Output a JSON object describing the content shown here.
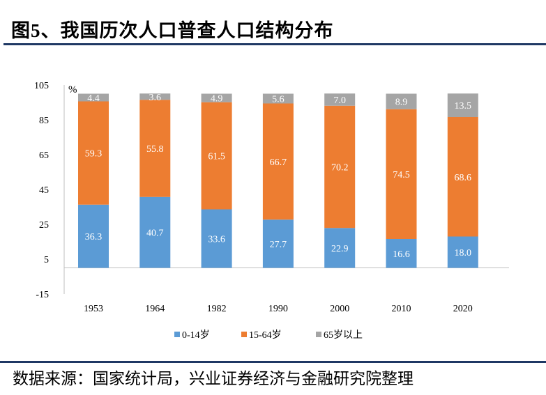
{
  "title": "图5、我国历次人口普查人口结构分布",
  "source": "数据来源：国家统计局，兴业证券经济与金融研究院整理",
  "chart_data": {
    "type": "bar",
    "stacked": true,
    "unit_label": "%",
    "categories": [
      "1953",
      "1964",
      "1982",
      "1990",
      "2000",
      "2010",
      "2020"
    ],
    "series": [
      {
        "name": "0-14岁",
        "color": "#5b9bd5",
        "values": [
          36.3,
          40.7,
          33.6,
          27.7,
          22.9,
          16.6,
          18.0
        ]
      },
      {
        "name": "15-64岁",
        "color": "#ed7d31",
        "values": [
          59.3,
          55.8,
          61.5,
          66.7,
          70.2,
          74.5,
          68.6
        ]
      },
      {
        "name": "65岁以上",
        "color": "#a5a5a5",
        "values": [
          4.4,
          3.6,
          4.9,
          5.6,
          7.0,
          8.9,
          13.5
        ]
      }
    ],
    "ylim": [
      -15,
      105
    ],
    "yticks": [
      -15,
      5,
      25,
      45,
      65,
      85,
      105
    ],
    "grid": false,
    "legend": "bottom"
  }
}
